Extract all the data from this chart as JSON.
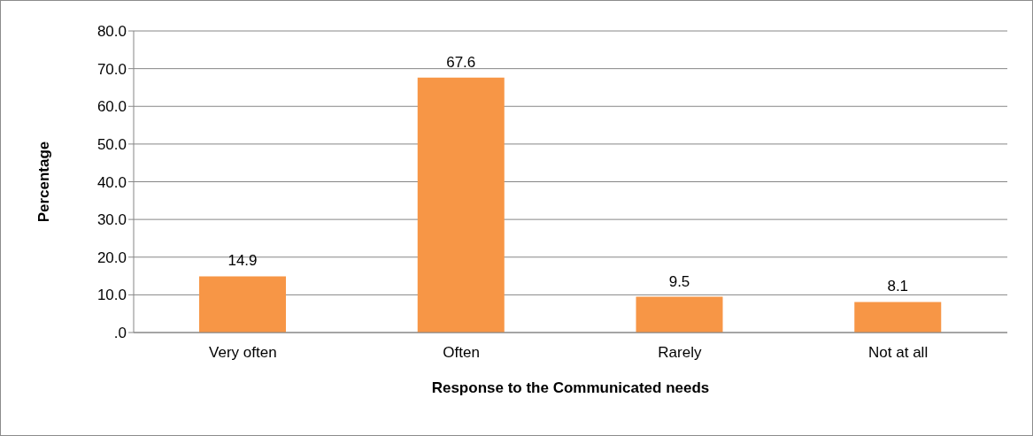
{
  "chart_data": {
    "type": "bar",
    "xlabel": "Response to the Communicated needs",
    "ylabel": "Percentage",
    "categories": [
      "Very often",
      "Often",
      "Rarely",
      "Not at all"
    ],
    "values": [
      14.9,
      67.6,
      9.5,
      8.1
    ],
    "color": "#f79646",
    "ylim": [
      0,
      80
    ],
    "yticks": [
      {
        "value": 0,
        "label": ".0"
      },
      {
        "value": 10,
        "label": "10.0"
      },
      {
        "value": 20,
        "label": "20.0"
      },
      {
        "value": 30,
        "label": "30.0"
      },
      {
        "value": 40,
        "label": "40.0"
      },
      {
        "value": 50,
        "label": "50.0"
      },
      {
        "value": 60,
        "label": "60.0"
      },
      {
        "value": 70,
        "label": "70.0"
      },
      {
        "value": 80,
        "label": "80.0"
      }
    ],
    "grid": "y",
    "data_labels": true,
    "legend": false
  }
}
